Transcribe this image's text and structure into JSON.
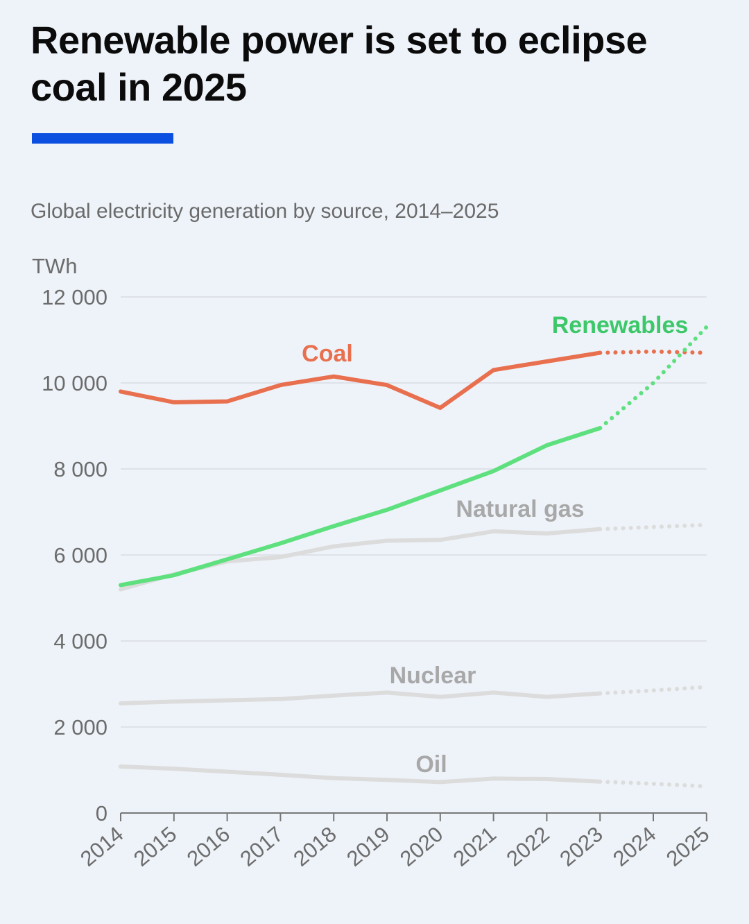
{
  "headline": "Renewable power is set to eclipse coal in 2025",
  "colors": {
    "accent": "#0b4fe0",
    "coal": "#e8704f",
    "renewables": "#5fe07f",
    "renewables_label": "#3cc869",
    "gas": "#dcdcdc",
    "nuclear": "#dcdcdc",
    "oil": "#dcdcdc",
    "gray_label": "#a8a8a8"
  },
  "chart_data": {
    "type": "line",
    "title": "Renewable power is set to eclipse coal in 2025",
    "subtitle": "Global electricity generation by source, 2014–2025",
    "ylabel": "TWh",
    "ylim": [
      0,
      12000
    ],
    "yticks": [
      0,
      2000,
      4000,
      6000,
      8000,
      10000,
      12000
    ],
    "ytick_labels": [
      "0",
      "2 000",
      "4 000",
      "6 000",
      "8 000",
      "10 000",
      "12 000"
    ],
    "x": [
      "2014",
      "2015",
      "2016",
      "2017",
      "2018",
      "2019",
      "2020",
      "2021",
      "2022",
      "2023",
      "2024",
      "2025"
    ],
    "actual_through": "2023",
    "forecast_style": "dotted",
    "grid": true,
    "series": [
      {
        "name": "Coal",
        "color_key": "coal",
        "values": [
          9800,
          9550,
          9570,
          9950,
          10150,
          9950,
          9420,
          10300,
          10500,
          10700,
          10730,
          10700
        ]
      },
      {
        "name": "Renewables",
        "color_key": "renewables",
        "label_color_key": "renewables_label",
        "values": [
          5300,
          5530,
          5900,
          6270,
          6670,
          7050,
          7500,
          7950,
          8550,
          8950,
          10000,
          11300
        ]
      },
      {
        "name": "Natural gas",
        "color_key": "gas",
        "label_color_key": "gray_label",
        "values": [
          5200,
          5550,
          5850,
          5950,
          6200,
          6330,
          6350,
          6550,
          6500,
          6600,
          6650,
          6700
        ]
      },
      {
        "name": "Nuclear",
        "color_key": "nuclear",
        "label_color_key": "gray_label",
        "values": [
          2550,
          2590,
          2620,
          2650,
          2730,
          2800,
          2700,
          2800,
          2700,
          2780,
          2850,
          2930
        ]
      },
      {
        "name": "Oil",
        "color_key": "oil",
        "label_color_key": "gray_label",
        "values": [
          1080,
          1030,
          960,
          890,
          810,
          770,
          720,
          800,
          790,
          730,
          680,
          620
        ]
      }
    ]
  }
}
